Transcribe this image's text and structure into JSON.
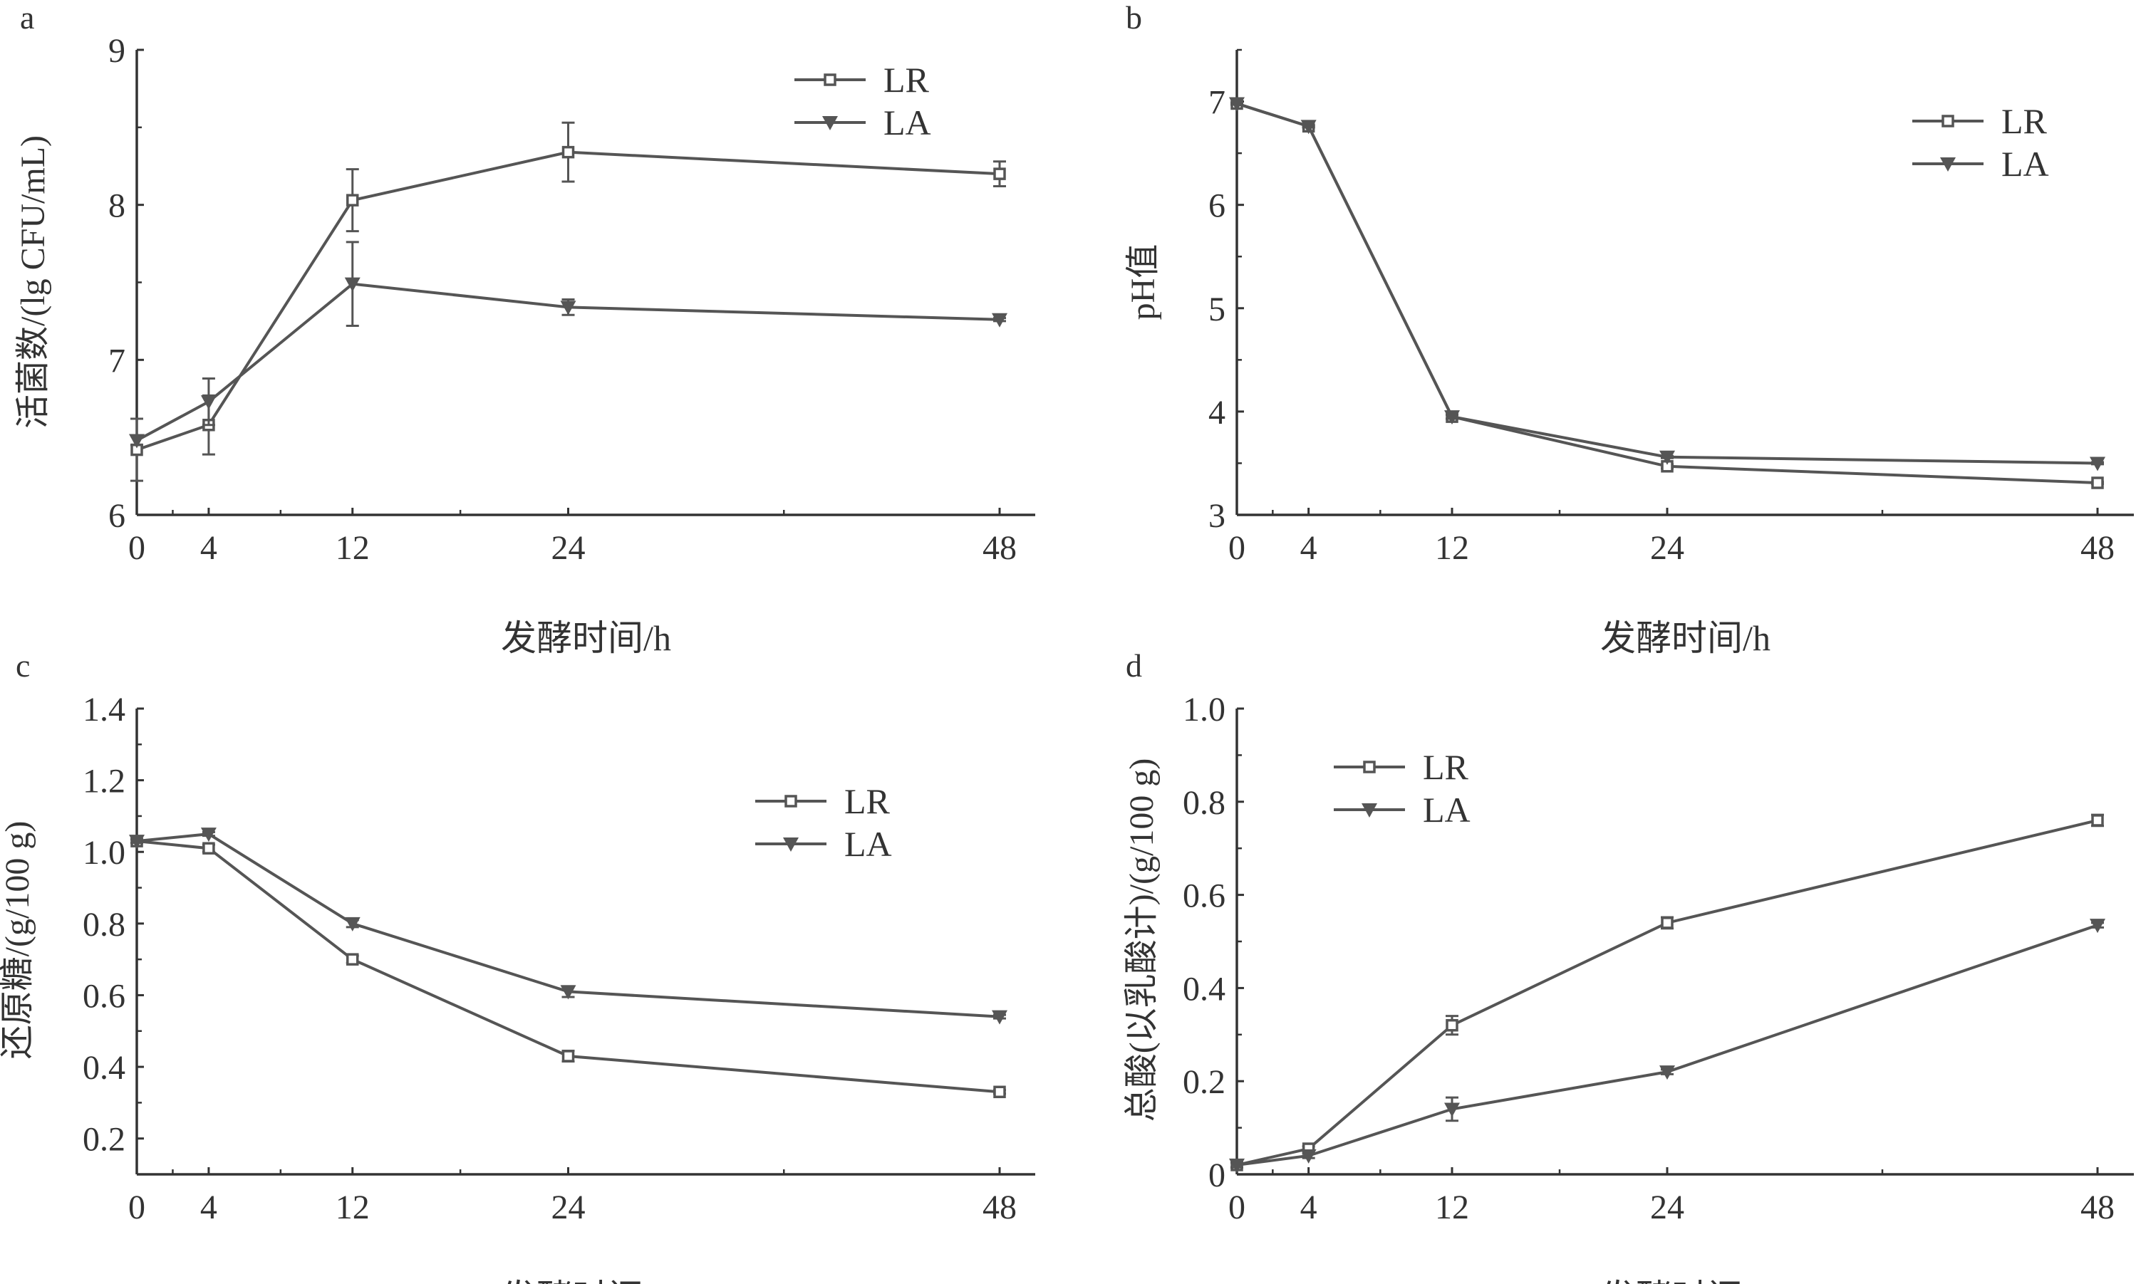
{
  "color": "#555555",
  "chart_data": [
    {
      "type": "line",
      "panel_label": "a",
      "xlabel": "发酵时间/h",
      "ylabel": "活菌数/(lg CFU/mL)",
      "x": [
        0,
        4,
        12,
        24,
        48
      ],
      "x_ticks": [
        "0",
        "4",
        "12",
        "24",
        "48"
      ],
      "ylim": [
        6,
        9
      ],
      "y_ticks": [
        "6",
        "7",
        "8",
        "9"
      ],
      "y_tick_values": [
        6,
        7,
        8,
        9
      ],
      "legend_position": "top-right",
      "grid": false,
      "series": [
        {
          "name": "LR",
          "marker": "open-square",
          "values": [
            6.42,
            6.58,
            8.03,
            8.34,
            8.2
          ],
          "errors": [
            0.2,
            0.19,
            0.2,
            0.19,
            0.08
          ]
        },
        {
          "name": "LA",
          "marker": "filled-down-triangle",
          "values": [
            6.48,
            6.73,
            7.49,
            7.34,
            7.26
          ],
          "errors": [
            0.03,
            0.15,
            0.27,
            0.05,
            0.01
          ]
        }
      ]
    },
    {
      "type": "line",
      "panel_label": "b",
      "xlabel": "发酵时间/h",
      "ylabel": "pH值",
      "x": [
        0,
        4,
        12,
        24,
        48
      ],
      "x_ticks": [
        "0",
        "4",
        "12",
        "24",
        "48"
      ],
      "ylim": [
        3,
        7.5
      ],
      "y_ticks": [
        "3",
        "4",
        "5",
        "6",
        "7"
      ],
      "y_tick_values": [
        3,
        4,
        5,
        6,
        7
      ],
      "legend_position": "top-right",
      "grid": false,
      "series": [
        {
          "name": "LR",
          "marker": "open-square",
          "values": [
            6.98,
            6.76,
            3.95,
            3.47,
            3.31
          ],
          "errors": [
            0.01,
            0.01,
            0.02,
            0.02,
            0.01
          ]
        },
        {
          "name": "LA",
          "marker": "filled-down-triangle",
          "values": [
            6.98,
            6.76,
            3.95,
            3.56,
            3.5
          ],
          "errors": [
            0.01,
            0.01,
            0.02,
            0.01,
            0.01
          ]
        }
      ]
    },
    {
      "type": "line",
      "panel_label": "c",
      "xlabel": "发酵时间/h",
      "ylabel": "还原糖/(g/100 g)",
      "x": [
        0,
        4,
        12,
        24,
        48
      ],
      "x_ticks": [
        "0",
        "4",
        "12",
        "24",
        "48"
      ],
      "ylim": [
        0.1,
        1.4
      ],
      "y_ticks": [
        "0.2",
        "0.4",
        "0.6",
        "0.8",
        "1.0",
        "1.2",
        "1.4"
      ],
      "y_tick_values": [
        0.2,
        0.4,
        0.6,
        0.8,
        1.0,
        1.2,
        1.4
      ],
      "legend_position": "right",
      "grid": false,
      "series": [
        {
          "name": "LR",
          "marker": "open-square",
          "values": [
            1.03,
            1.01,
            0.7,
            0.43,
            0.33
          ],
          "errors": [
            0.005,
            0.01,
            0.01,
            0.015,
            0.005
          ]
        },
        {
          "name": "LA",
          "marker": "filled-down-triangle",
          "values": [
            1.03,
            1.05,
            0.8,
            0.61,
            0.54
          ],
          "errors": [
            0.005,
            0.005,
            0.01,
            0.015,
            0.005
          ]
        }
      ]
    },
    {
      "type": "line",
      "panel_label": "d",
      "xlabel": "发酵时间/h",
      "ylabel": "总酸(以乳酸计)/(g/100 g)",
      "x": [
        0,
        4,
        12,
        24,
        48
      ],
      "x_ticks": [
        "0",
        "4",
        "12",
        "24",
        "48"
      ],
      "ylim": [
        0,
        1.0
      ],
      "y_ticks": [
        "0",
        "0.2",
        "0.4",
        "0.6",
        "0.8",
        "1.0"
      ],
      "y_tick_values": [
        0,
        0.2,
        0.4,
        0.6,
        0.8,
        1.0
      ],
      "legend_position": "top-left",
      "grid": false,
      "series": [
        {
          "name": "LR",
          "marker": "open-square",
          "values": [
            0.02,
            0.055,
            0.32,
            0.54,
            0.76
          ],
          "errors": [
            0.005,
            0.005,
            0.02,
            0.012,
            0.012
          ]
        },
        {
          "name": "LA",
          "marker": "filled-down-triangle",
          "values": [
            0.02,
            0.04,
            0.14,
            0.22,
            0.535
          ],
          "errors": [
            0.005,
            0.005,
            0.025,
            0.005,
            0.005
          ]
        }
      ]
    }
  ]
}
